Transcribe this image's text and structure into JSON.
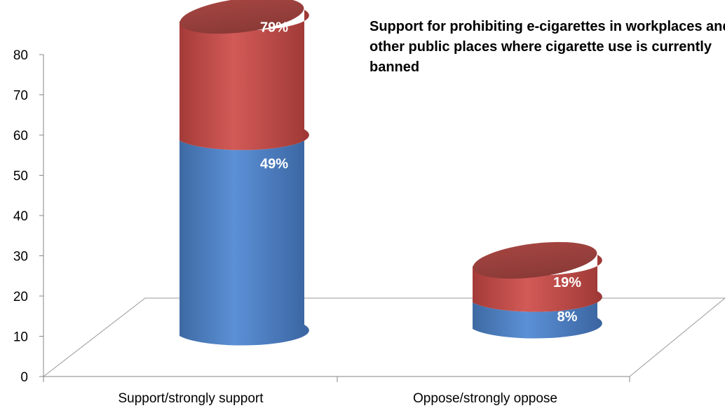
{
  "chart_data": {
    "type": "bar",
    "style": "3d-cylinder",
    "title": "Support for prohibiting e-cigarettes in workplaces and other public places where cigarette use is currently banned",
    "categories": [
      "Support/strongly support",
      "Oppose/strongly oppose"
    ],
    "series": [
      {
        "values": [
          49,
          8
        ],
        "labels": [
          "49%",
          "8%"
        ],
        "color": "#4f81bd"
      },
      {
        "values": [
          79,
          19
        ],
        "labels": [
          "79%",
          "19%"
        ],
        "color": "#c0504d"
      }
    ],
    "ylim": [
      0,
      80
    ],
    "yticks": [
      0,
      10,
      20,
      30,
      40,
      50,
      60,
      70,
      80
    ],
    "grid": false,
    "legend": "none"
  }
}
